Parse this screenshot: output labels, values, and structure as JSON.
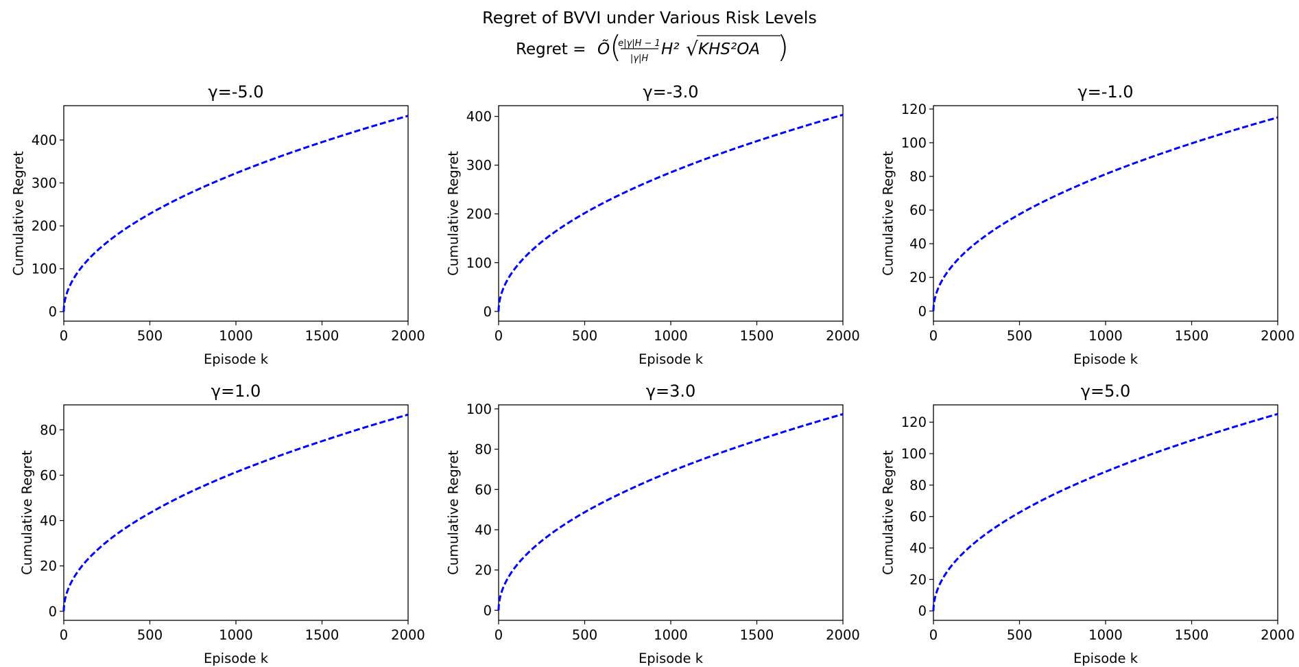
{
  "figure": {
    "title": "Regret of BVVI under Various Risk Levels",
    "formula_prefix": "Regret =",
    "formula_symbol": "Õ",
    "formula_frac_num": "e|γ|H − 1",
    "formula_frac_den": "|γ|H",
    "formula_h2": "H²",
    "formula_root": "√",
    "formula_radicand": "KHS²OA",
    "line_color": "#0000ff",
    "line_style": "dashed"
  },
  "chart_data": [
    {
      "type": "line",
      "title": "γ=-5.0",
      "xlabel": "Episode k",
      "ylabel": "Cumulative Regret",
      "xlim": [
        0,
        2000
      ],
      "ylim": [
        -22,
        480
      ],
      "xticks": [
        0,
        500,
        1000,
        1500,
        2000
      ],
      "yticks": [
        0,
        100,
        200,
        300,
        400
      ],
      "x": [
        0,
        1,
        10,
        50,
        100,
        200,
        300,
        500,
        750,
        1000,
        1250,
        1500,
        1750,
        2000
      ],
      "series": [
        {
          "values": [
            0,
            10.2,
            32.3,
            72.2,
            102.0,
            144.3,
            176.7,
            228.1,
            279.4,
            322.6,
            360.7,
            395.1,
            426.8,
            456.3
          ]
        }
      ]
    },
    {
      "type": "line",
      "title": "γ=-3.0",
      "xlabel": "Episode k",
      "ylabel": "Cumulative Regret",
      "xlim": [
        0,
        2000
      ],
      "ylim": [
        -20,
        422
      ],
      "xticks": [
        0,
        500,
        1000,
        1500,
        2000
      ],
      "yticks": [
        0,
        100,
        200,
        300,
        400
      ],
      "x": [
        0,
        1,
        10,
        50,
        100,
        200,
        300,
        500,
        750,
        1000,
        1250,
        1500,
        1750,
        2000
      ],
      "series": [
        {
          "values": [
            0,
            9.0,
            28.5,
            63.8,
            90.2,
            127.5,
            156.2,
            201.6,
            246.9,
            285.1,
            318.8,
            349.2,
            377.2,
            403.2
          ]
        }
      ]
    },
    {
      "type": "line",
      "title": "γ=-1.0",
      "xlabel": "Episode k",
      "ylabel": "Cumulative Regret",
      "xlim": [
        0,
        2000
      ],
      "ylim": [
        -6,
        122
      ],
      "xticks": [
        0,
        500,
        1000,
        1500,
        2000
      ],
      "yticks": [
        0,
        20,
        40,
        60,
        80,
        100,
        120
      ],
      "x": [
        0,
        1,
        10,
        50,
        100,
        200,
        300,
        500,
        750,
        1000,
        1250,
        1500,
        1750,
        2000
      ],
      "series": [
        {
          "values": [
            0,
            2.6,
            8.1,
            18.2,
            25.7,
            36.4,
            44.5,
            57.5,
            70.4,
            81.3,
            90.9,
            99.6,
            107.6,
            115.0
          ]
        }
      ]
    },
    {
      "type": "line",
      "title": "γ=1.0",
      "xlabel": "Episode k",
      "ylabel": "Cumulative Regret",
      "xlim": [
        0,
        2000
      ],
      "ylim": [
        -4,
        91
      ],
      "xticks": [
        0,
        500,
        1000,
        1500,
        2000
      ],
      "yticks": [
        0,
        20,
        40,
        60,
        80
      ],
      "x": [
        0,
        1,
        10,
        50,
        100,
        200,
        300,
        500,
        750,
        1000,
        1250,
        1500,
        1750,
        2000
      ],
      "series": [
        {
          "values": [
            0,
            1.9,
            6.1,
            13.7,
            19.4,
            27.4,
            33.6,
            43.3,
            53.1,
            61.3,
            68.5,
            75.0,
            81.1,
            86.7
          ]
        }
      ]
    },
    {
      "type": "line",
      "title": "γ=3.0",
      "xlabel": "Episode k",
      "ylabel": "Cumulative Regret",
      "xlim": [
        0,
        2000
      ],
      "ylim": [
        -5,
        102
      ],
      "xticks": [
        0,
        500,
        1000,
        1500,
        2000
      ],
      "yticks": [
        0,
        20,
        40,
        60,
        80,
        100
      ],
      "x": [
        0,
        1,
        10,
        50,
        100,
        200,
        300,
        500,
        750,
        1000,
        1250,
        1500,
        1750,
        2000
      ],
      "series": [
        {
          "values": [
            0,
            2.2,
            6.9,
            15.4,
            21.8,
            30.8,
            37.7,
            48.7,
            59.6,
            68.9,
            77.0,
            84.3,
            91.1,
            97.4
          ]
        }
      ]
    },
    {
      "type": "line",
      "title": "γ=5.0",
      "xlabel": "Episode k",
      "ylabel": "Cumulative Regret",
      "xlim": [
        0,
        2000
      ],
      "ylim": [
        -6,
        131
      ],
      "xticks": [
        0,
        500,
        1000,
        1500,
        2000
      ],
      "yticks": [
        0,
        20,
        40,
        60,
        80,
        100,
        120
      ],
      "x": [
        0,
        1,
        10,
        50,
        100,
        200,
        300,
        500,
        750,
        1000,
        1250,
        1500,
        1750,
        2000
      ],
      "series": [
        {
          "values": [
            0,
            2.8,
            8.8,
            19.8,
            28.0,
            39.6,
            48.5,
            62.6,
            76.7,
            88.5,
            99.0,
            108.4,
            117.1,
            125.2
          ]
        }
      ]
    }
  ]
}
